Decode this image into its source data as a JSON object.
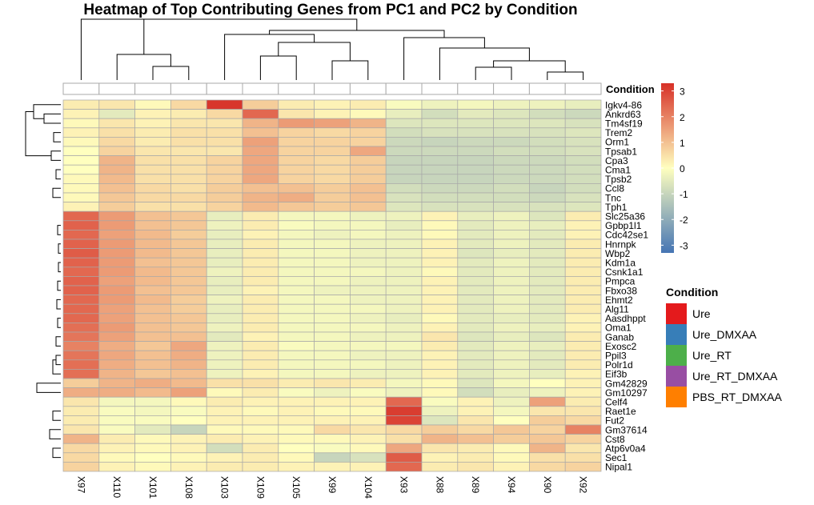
{
  "chart_data": {
    "type": "heatmap",
    "title": "Heatmap of Top Contributing Genes from PC1 and PC2 by Condition",
    "columns": [
      "X97",
      "X110",
      "X101",
      "X108",
      "X103",
      "X109",
      "X105",
      "X99",
      "X104",
      "X93",
      "X88",
      "X89",
      "X94",
      "X90",
      "X92"
    ],
    "rows": [
      "Igkv4-86",
      "Ankrd63",
      "Tm4sf19",
      "Trem2",
      "Orm1",
      "Tpsab1",
      "Cpa3",
      "Cma1",
      "Tpsb2",
      "Ccl8",
      "Tnc",
      "Tph1",
      "Slc25a36",
      "Gpbp1l1",
      "Cdc42se1",
      "Hnrnpk",
      "Wbp2",
      "Kdm1a",
      "Csnk1a1",
      "Pmpca",
      "Fbxo38",
      "Ehmt2",
      "Alg11",
      "Aasdhppt",
      "Oma1",
      "Ganab",
      "Exosc2",
      "Ppil3",
      "Polr1d",
      "Eif3b",
      "Gm42829",
      "Gm10297",
      "Celf4",
      "Raet1e",
      "Fut2",
      "Gm37614",
      "Cst8",
      "Atp6v0a4",
      "Sec1",
      "Nipal1"
    ],
    "values": [
      [
        0.3,
        0.4,
        0.1,
        0.6,
        3.2,
        0.8,
        0.3,
        0.2,
        0.3,
        -0.1,
        -0.3,
        -0.2,
        -0.3,
        -0.3,
        -0.4
      ],
      [
        0.2,
        -0.5,
        0.2,
        0.3,
        0.6,
        2.4,
        0.4,
        0.2,
        0.1,
        -0.4,
        -0.8,
        -0.5,
        -0.6,
        -0.8,
        -0.9
      ],
      [
        0.1,
        0.4,
        0.2,
        0.4,
        0.4,
        1.2,
        1.6,
        1.5,
        1.2,
        -0.6,
        -0.6,
        -0.6,
        -0.6,
        -0.6,
        -0.7
      ],
      [
        0.2,
        0.5,
        0.3,
        0.5,
        0.5,
        1.0,
        0.7,
        0.6,
        0.7,
        -0.8,
        -0.7,
        -0.7,
        -0.7,
        -0.7,
        -0.6
      ],
      [
        0.1,
        0.6,
        0.3,
        0.5,
        0.5,
        1.5,
        0.7,
        0.7,
        0.7,
        -0.9,
        -1.0,
        -0.9,
        -0.9,
        -0.8,
        -0.7
      ],
      [
        0.0,
        0.7,
        0.4,
        0.4,
        0.4,
        1.4,
        0.7,
        0.7,
        1.4,
        -0.9,
        -0.9,
        -0.9,
        -0.8,
        -0.8,
        -0.7
      ],
      [
        0.0,
        1.2,
        0.5,
        0.5,
        0.7,
        1.4,
        0.7,
        0.6,
        0.8,
        -1.0,
        -1.0,
        -1.0,
        -0.9,
        -0.9,
        -0.8
      ],
      [
        0.0,
        1.2,
        0.5,
        0.5,
        0.7,
        1.4,
        0.7,
        0.6,
        0.8,
        -1.0,
        -1.0,
        -1.0,
        -0.9,
        -0.9,
        -0.8
      ],
      [
        0.1,
        1.1,
        0.5,
        0.5,
        0.7,
        1.4,
        0.7,
        0.6,
        0.8,
        -1.0,
        -1.0,
        -1.0,
        -0.9,
        -0.9,
        -0.8
      ],
      [
        0.1,
        1.0,
        0.6,
        0.5,
        0.8,
        1.0,
        1.0,
        0.8,
        1.0,
        -0.8,
        -0.9,
        -0.9,
        -0.8,
        -1.0,
        -0.8
      ],
      [
        0.1,
        0.9,
        0.6,
        0.6,
        0.8,
        1.2,
        1.3,
        0.8,
        1.0,
        -0.7,
        -0.8,
        -0.8,
        -0.8,
        -0.9,
        -0.7
      ],
      [
        0.2,
        0.8,
        0.5,
        0.5,
        0.7,
        1.1,
        0.9,
        0.8,
        0.9,
        -0.6,
        -0.7,
        -0.7,
        -0.7,
        -0.7,
        -0.6
      ],
      [
        2.4,
        1.6,
        1.0,
        0.9,
        -0.4,
        0.3,
        -0.2,
        -0.2,
        -0.3,
        -0.3,
        0.2,
        -0.4,
        -0.3,
        -0.6,
        0.3
      ],
      [
        2.5,
        1.6,
        1.0,
        0.9,
        -0.3,
        0.3,
        -0.1,
        -0.2,
        -0.2,
        -0.4,
        0.1,
        -0.5,
        -0.3,
        -0.4,
        0.2
      ],
      [
        2.4,
        1.5,
        1.1,
        0.8,
        -0.4,
        0.2,
        -0.2,
        -0.3,
        -0.2,
        -0.3,
        0.1,
        -0.5,
        -0.3,
        -0.5,
        0.2
      ],
      [
        2.5,
        1.6,
        1.1,
        0.9,
        -0.4,
        0.3,
        -0.2,
        -0.2,
        -0.3,
        -0.3,
        0.2,
        -0.5,
        -0.3,
        -0.5,
        0.3
      ],
      [
        2.6,
        1.6,
        1.1,
        0.9,
        -0.4,
        0.3,
        -0.2,
        -0.2,
        -0.3,
        -0.3,
        0.2,
        -0.6,
        -0.4,
        -0.5,
        0.3
      ],
      [
        2.5,
        1.6,
        1.0,
        0.9,
        -0.4,
        0.3,
        -0.2,
        -0.2,
        -0.3,
        -0.3,
        0.2,
        -0.5,
        -0.3,
        -0.5,
        0.3
      ],
      [
        2.4,
        1.6,
        1.1,
        0.9,
        -0.3,
        0.3,
        -0.2,
        -0.2,
        -0.2,
        -0.3,
        0.1,
        -0.5,
        -0.3,
        -0.5,
        0.3
      ],
      [
        2.5,
        1.5,
        1.1,
        0.9,
        -0.4,
        0.3,
        -0.2,
        -0.2,
        -0.3,
        -0.3,
        0.2,
        -0.5,
        -0.3,
        -0.5,
        0.3
      ],
      [
        2.5,
        1.6,
        1.0,
        0.9,
        -0.4,
        0.2,
        -0.2,
        -0.3,
        -0.3,
        -0.3,
        0.2,
        -0.5,
        -0.3,
        -0.5,
        0.3
      ],
      [
        2.4,
        1.6,
        1.1,
        0.8,
        -0.3,
        0.3,
        -0.2,
        -0.2,
        -0.3,
        -0.3,
        0.2,
        -0.5,
        -0.3,
        -0.5,
        0.3
      ],
      [
        2.4,
        1.5,
        1.0,
        0.8,
        -0.4,
        0.3,
        -0.2,
        -0.2,
        -0.2,
        -0.3,
        0.2,
        -0.5,
        -0.3,
        -0.5,
        0.3
      ],
      [
        2.4,
        1.5,
        1.0,
        0.9,
        -0.4,
        0.3,
        -0.2,
        -0.2,
        -0.3,
        -0.4,
        0.1,
        -0.5,
        -0.4,
        -0.5,
        0.2
      ],
      [
        2.3,
        1.6,
        1.0,
        0.9,
        -0.3,
        0.3,
        -0.2,
        -0.2,
        -0.2,
        -0.3,
        0.2,
        -0.5,
        -0.3,
        -0.4,
        0.2
      ],
      [
        2.2,
        1.5,
        1.0,
        1.0,
        -0.5,
        0.2,
        -0.2,
        -0.2,
        -0.3,
        -0.3,
        0.4,
        -0.6,
        -0.4,
        -0.6,
        0.3
      ],
      [
        2.0,
        1.3,
        0.9,
        1.4,
        -0.3,
        0.3,
        -0.1,
        -0.2,
        -0.2,
        -0.2,
        0.3,
        -0.5,
        -0.3,
        -0.4,
        0.3
      ],
      [
        2.2,
        1.4,
        1.0,
        1.3,
        -0.3,
        0.3,
        -0.2,
        -0.2,
        -0.3,
        -0.3,
        0.2,
        -0.5,
        -0.3,
        -0.5,
        0.3
      ],
      [
        2.3,
        1.3,
        1.0,
        1.2,
        -0.3,
        0.3,
        -0.2,
        -0.2,
        -0.2,
        -0.3,
        0.2,
        -0.5,
        -0.3,
        -0.5,
        0.3
      ],
      [
        2.3,
        1.2,
        0.9,
        1.0,
        -0.3,
        0.2,
        -0.2,
        -0.2,
        -0.3,
        -0.3,
        0.2,
        -0.5,
        -0.3,
        -0.4,
        0.2
      ],
      [
        0.8,
        1.2,
        1.3,
        1.1,
        0.5,
        0.5,
        0.3,
        0.4,
        0.3,
        -0.2,
        0.1,
        -0.6,
        -0.2,
        0.0,
        0.2
      ],
      [
        1.3,
        1.3,
        1.1,
        1.5,
        0.1,
        0.3,
        -0.1,
        -0.3,
        -0.1,
        -0.3,
        0.1,
        -0.8,
        -0.4,
        -0.3,
        0.2
      ],
      [
        0.4,
        -0.2,
        -0.2,
        0.1,
        0.3,
        0.2,
        0.2,
        0.2,
        0.2,
        2.4,
        -0.1,
        0.2,
        -0.3,
        1.5,
        0.3
      ],
      [
        0.3,
        -0.1,
        -0.2,
        -0.1,
        0.2,
        0.1,
        0.2,
        0.1,
        0.1,
        3.1,
        -0.3,
        0.2,
        -0.2,
        0.4,
        0.4
      ],
      [
        0.3,
        -0.1,
        -0.1,
        0.0,
        0.2,
        0.2,
        0.2,
        0.2,
        0.2,
        3.0,
        -0.6,
        0.4,
        0.0,
        0.8,
        0.6
      ],
      [
        0.4,
        -0.1,
        -0.5,
        -1.0,
        0.1,
        0.1,
        0.1,
        0.6,
        0.4,
        0.6,
        0.8,
        0.6,
        0.9,
        0.7,
        2.0
      ],
      [
        1.2,
        0.3,
        0.1,
        0.2,
        0.3,
        0.2,
        0.1,
        0.1,
        0.2,
        0.5,
        1.2,
        1.0,
        0.8,
        0.9,
        0.7
      ],
      [
        0.6,
        0.2,
        0.1,
        0.2,
        -0.8,
        0.3,
        0.0,
        -0.1,
        0.1,
        1.4,
        0.4,
        0.3,
        0.1,
        1.2,
        0.4
      ],
      [
        0.6,
        0.1,
        0.0,
        0.1,
        0.2,
        0.3,
        0.1,
        -1.0,
        -0.7,
        2.6,
        0.2,
        0.3,
        0.1,
        0.5,
        0.5
      ],
      [
        0.7,
        0.2,
        0.1,
        0.2,
        0.3,
        0.3,
        0.2,
        0.2,
        0.2,
        2.4,
        0.3,
        0.4,
        0.2,
        0.6,
        0.7
      ]
    ],
    "annotation_title": "Condition",
    "color_scale": {
      "ticks": [
        3,
        2,
        1,
        0,
        -1,
        -2,
        -3
      ],
      "range": [
        -3.3,
        3.3
      ],
      "low": "#4575b4",
      "mid": "#ffffbf",
      "high": "#d73027"
    },
    "legend": [
      {
        "label": "Ure",
        "color": "#e41a1c"
      },
      {
        "label": "Ure_DMXAA",
        "color": "#377eb8"
      },
      {
        "label": "Ure_RT",
        "color": "#4daf4a"
      },
      {
        "label": "Ure_RT_DMXAA",
        "color": "#984ea3"
      },
      {
        "label": "PBS_RT_DMXAA",
        "color": "#ff7f00"
      }
    ]
  }
}
